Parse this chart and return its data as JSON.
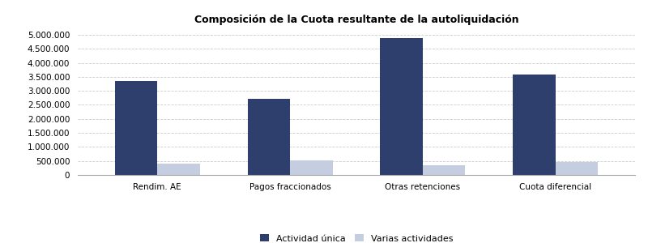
{
  "title": "Composición de la Cuota resultante de la autoliquidación",
  "categories": [
    "Rendim. AE",
    "Pagos fraccionados",
    "Otras retenciones",
    "Cuota diferencial"
  ],
  "actividad_unica": [
    3350000,
    2720000,
    4870000,
    3580000
  ],
  "varias_actividades": [
    400000,
    530000,
    350000,
    450000
  ],
  "bar_color_unica": "#2e3f6e",
  "bar_color_varias": "#c5cde0",
  "legend_labels": [
    "Actividad única",
    "Varias actividades"
  ],
  "ylim": [
    0,
    5200000
  ],
  "yticks": [
    0,
    500000,
    1000000,
    1500000,
    2000000,
    2500000,
    3000000,
    3500000,
    4000000,
    4500000,
    5000000
  ],
  "title_fontsize": 9,
  "tick_fontsize": 7.5,
  "legend_fontsize": 8,
  "bar_width": 0.32,
  "background_color": "#ffffff",
  "grid_color": "#cccccc"
}
